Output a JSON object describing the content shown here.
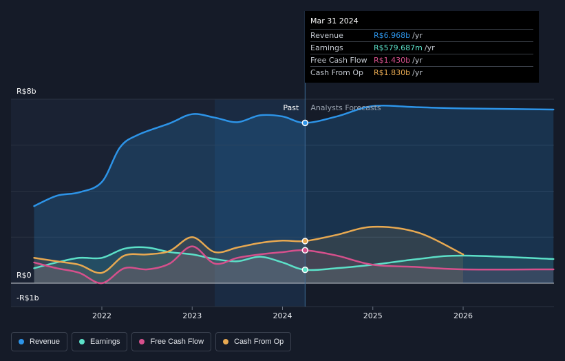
{
  "chart_data": {
    "type": "line",
    "currency_labels": {
      "top": "R$8b",
      "zero": "R$0",
      "bottom": "-R$1b"
    },
    "ylim": [
      -1,
      8
    ],
    "xlim": [
      2021.25,
      2027.0
    ],
    "x_ticks": [
      {
        "value": 2022,
        "label": "2022"
      },
      {
        "value": 2023,
        "label": "2023"
      },
      {
        "value": 2024,
        "label": "2024"
      },
      {
        "value": 2025,
        "label": "2025"
      },
      {
        "value": 2026,
        "label": "2026"
      }
    ],
    "gridlines": [
      0,
      2,
      4,
      6,
      8
    ],
    "past_region_label": "Past",
    "forecast_region_label": "Analysts Forecasts",
    "divider_x": 2024.25,
    "highlight_start_x": 2023.25,
    "series": [
      {
        "name": "Revenue",
        "color": "#2d94e8",
        "fill": true,
        "points": [
          [
            2021.25,
            3.35
          ],
          [
            2021.5,
            3.8
          ],
          [
            2021.75,
            3.95
          ],
          [
            2022.0,
            4.4
          ],
          [
            2022.2,
            5.9
          ],
          [
            2022.4,
            6.45
          ],
          [
            2022.75,
            6.95
          ],
          [
            2023.0,
            7.35
          ],
          [
            2023.25,
            7.2
          ],
          [
            2023.5,
            7.0
          ],
          [
            2023.75,
            7.3
          ],
          [
            2024.0,
            7.25
          ],
          [
            2024.25,
            6.97
          ],
          [
            2024.6,
            7.25
          ],
          [
            2025.0,
            7.7
          ],
          [
            2025.5,
            7.65
          ],
          [
            2026.0,
            7.6
          ],
          [
            2027.0,
            7.55
          ]
        ]
      },
      {
        "name": "Earnings",
        "color": "#5ce0c8",
        "fill": true,
        "points": [
          [
            2021.25,
            0.65
          ],
          [
            2021.5,
            0.9
          ],
          [
            2021.75,
            1.1
          ],
          [
            2022.0,
            1.1
          ],
          [
            2022.25,
            1.5
          ],
          [
            2022.5,
            1.55
          ],
          [
            2022.75,
            1.35
          ],
          [
            2023.0,
            1.25
          ],
          [
            2023.25,
            1.05
          ],
          [
            2023.5,
            0.95
          ],
          [
            2023.75,
            1.15
          ],
          [
            2024.0,
            0.9
          ],
          [
            2024.25,
            0.58
          ],
          [
            2024.6,
            0.65
          ],
          [
            2025.0,
            0.8
          ],
          [
            2025.5,
            1.05
          ],
          [
            2026.0,
            1.2
          ],
          [
            2027.0,
            1.05
          ]
        ]
      },
      {
        "name": "Free Cash Flow",
        "color": "#d6508c",
        "fill": true,
        "points": [
          [
            2021.25,
            0.9
          ],
          [
            2021.5,
            0.65
          ],
          [
            2021.75,
            0.45
          ],
          [
            2022.0,
            0.0
          ],
          [
            2022.25,
            0.65
          ],
          [
            2022.5,
            0.6
          ],
          [
            2022.75,
            0.85
          ],
          [
            2023.0,
            1.6
          ],
          [
            2023.25,
            0.85
          ],
          [
            2023.5,
            1.1
          ],
          [
            2023.75,
            1.25
          ],
          [
            2024.0,
            1.35
          ],
          [
            2024.25,
            1.43
          ],
          [
            2024.6,
            1.2
          ],
          [
            2025.0,
            0.8
          ],
          [
            2025.5,
            0.7
          ],
          [
            2026.0,
            0.6
          ],
          [
            2027.0,
            0.6
          ]
        ]
      },
      {
        "name": "Cash From Op",
        "color": "#e8a951",
        "fill": true,
        "points": [
          [
            2021.25,
            1.1
          ],
          [
            2021.5,
            0.95
          ],
          [
            2021.75,
            0.8
          ],
          [
            2022.0,
            0.45
          ],
          [
            2022.25,
            1.2
          ],
          [
            2022.5,
            1.25
          ],
          [
            2022.75,
            1.4
          ],
          [
            2023.0,
            2.0
          ],
          [
            2023.25,
            1.35
          ],
          [
            2023.5,
            1.55
          ],
          [
            2023.75,
            1.75
          ],
          [
            2024.0,
            1.85
          ],
          [
            2024.25,
            1.83
          ],
          [
            2024.6,
            2.1
          ],
          [
            2025.0,
            2.45
          ],
          [
            2025.5,
            2.2
          ],
          [
            2026.0,
            1.25
          ]
        ]
      }
    ],
    "tooltip": {
      "date": "Mar 31 2024",
      "rows": [
        {
          "label": "Revenue",
          "value": "R$6.968b",
          "unit": "/yr",
          "color": "#2d94e8"
        },
        {
          "label": "Earnings",
          "value": "R$579.687m",
          "unit": "/yr",
          "color": "#5ce0c8"
        },
        {
          "label": "Free Cash Flow",
          "value": "R$1.430b",
          "unit": "/yr",
          "color": "#d6508c"
        },
        {
          "label": "Cash From Op",
          "value": "R$1.830b",
          "unit": "/yr",
          "color": "#e8a951"
        }
      ]
    }
  },
  "legend": [
    {
      "label": "Revenue",
      "color": "#2d94e8"
    },
    {
      "label": "Earnings",
      "color": "#5ce0c8"
    },
    {
      "label": "Free Cash Flow",
      "color": "#d6508c"
    },
    {
      "label": "Cash From Op",
      "color": "#e8a951"
    }
  ]
}
